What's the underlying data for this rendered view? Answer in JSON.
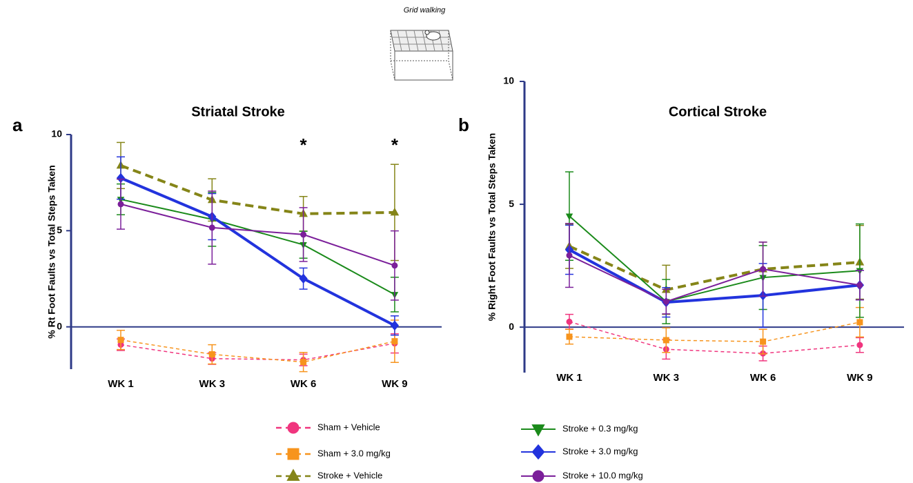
{
  "figure_caption": "Grid walking",
  "chart_data": [
    {
      "type": "line",
      "panel_label": "a",
      "title": "Striatal Stroke",
      "y_label": "% Rt Foot Faults vs Total Steps Taken",
      "categories": [
        "WK 1",
        "WK 3",
        "WK 6",
        "WK 9"
      ],
      "ylim": [
        -2.2,
        10
      ],
      "yticks": [
        0,
        5,
        10
      ],
      "annotations": [
        {
          "text": "*",
          "at": "WK 6"
        },
        {
          "text": "*",
          "at": "WK 9"
        }
      ],
      "series": [
        {
          "name": "Sham + Vehicle",
          "color": "#f0357e",
          "marker": "circle",
          "dashed": true,
          "width": 1.5,
          "values": [
            -0.93,
            -1.65,
            -1.72,
            -0.86
          ],
          "errors": [
            0.3,
            0.3,
            0.3,
            0.5
          ]
        },
        {
          "name": "Sham + 3.0 mg/kg",
          "color": "#f7941d",
          "marker": "square",
          "dashed": true,
          "width": 1.5,
          "values": [
            -0.68,
            -1.43,
            -1.83,
            -0.75
          ],
          "errors": [
            0.5,
            0.5,
            0.5,
            1.1
          ]
        },
        {
          "name": "Stroke + Vehicle",
          "color": "#858518",
          "marker": "triangle",
          "dashed": true,
          "width": 4,
          "values": [
            8.39,
            6.6,
            5.88,
            5.95
          ],
          "errors": [
            1.2,
            1.1,
            0.9,
            2.5
          ]
        },
        {
          "name": "Stroke + 0.3 mg/kg",
          "color": "#1a8a1a",
          "marker": "triangle-down",
          "dashed": false,
          "width": 2,
          "values": [
            6.63,
            5.59,
            4.27,
            1.68
          ],
          "errors": [
            0.8,
            1.4,
            0.7,
            0.9
          ]
        },
        {
          "name": "Stroke + 3.0 mg/kg",
          "color": "#2233dd",
          "marker": "diamond",
          "dashed": false,
          "width": 4,
          "values": [
            7.74,
            5.73,
            2.51,
            0.07
          ],
          "errors": [
            1.1,
            1.2,
            0.55,
            0.5
          ]
        },
        {
          "name": "Stroke + 10.0 mg/kg",
          "color": "#7b1f9a",
          "marker": "circle",
          "dashed": false,
          "width": 2,
          "values": [
            6.38,
            5.16,
            4.8,
            3.19
          ],
          "errors": [
            1.3,
            1.9,
            1.4,
            1.8
          ]
        }
      ]
    },
    {
      "type": "line",
      "panel_label": "b",
      "title": "Cortical Stroke",
      "y_label": "% Right Foot Faults vs Total Steps Taken",
      "categories": [
        "WK 1",
        "WK 3",
        "WK 6",
        "WK 9"
      ],
      "ylim": [
        -1.85,
        10
      ],
      "yticks": [
        0,
        5,
        10
      ],
      "series": [
        {
          "name": "Sham + Vehicle",
          "color": "#f0357e",
          "marker": "circle",
          "dashed": true,
          "width": 1.5,
          "values": [
            0.22,
            -0.9,
            -1.07,
            -0.73
          ],
          "errors": [
            0.3,
            0.4,
            0.3,
            0.3
          ]
        },
        {
          "name": "Sham + 3.0 mg/kg",
          "color": "#f7941d",
          "marker": "square",
          "dashed": true,
          "width": 1.5,
          "values": [
            -0.39,
            -0.53,
            -0.59,
            0.2
          ],
          "errors": [
            0.3,
            0.5,
            0.5,
            0.6
          ]
        },
        {
          "name": "Stroke + Vehicle",
          "color": "#858518",
          "marker": "triangle",
          "dashed": true,
          "width": 4,
          "values": [
            3.29,
            1.52,
            2.36,
            2.64
          ],
          "errors": [
            0.9,
            1.0,
            1.1,
            1.5
          ]
        },
        {
          "name": "Stroke + 0.3 mg/kg",
          "color": "#1a8a1a",
          "marker": "triangle-down",
          "dashed": false,
          "width": 2,
          "values": [
            4.52,
            1.04,
            2.02,
            2.3
          ],
          "errors": [
            1.8,
            0.9,
            1.3,
            1.9
          ]
        },
        {
          "name": "Stroke + 3.0 mg/kg",
          "color": "#2233dd",
          "marker": "diamond",
          "dashed": false,
          "width": 4,
          "values": [
            3.15,
            1.01,
            1.29,
            1.71
          ],
          "errors": [
            1.0,
            0.6,
            1.3,
            0.6
          ]
        },
        {
          "name": "Stroke + 10.0 mg/kg",
          "color": "#7b1f9a",
          "marker": "circle",
          "dashed": false,
          "width": 2,
          "values": [
            2.92,
            1.04,
            2.36,
            1.71
          ],
          "errors": [
            1.3,
            0.5,
            1.1,
            0.6
          ]
        }
      ]
    }
  ]
}
